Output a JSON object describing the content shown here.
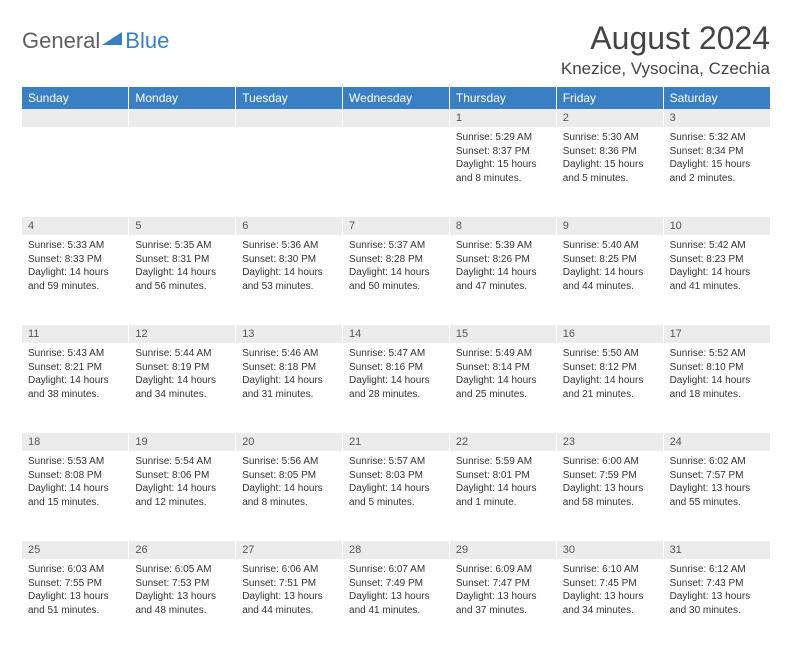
{
  "brand": {
    "part1": "General",
    "part2": "Blue"
  },
  "title": "August 2024",
  "location": "Knezice, Vysocina, Czechia",
  "colors": {
    "header_bg": "#3a7fc4",
    "header_text": "#ffffff",
    "daynum_bg": "#ececec",
    "body_text": "#333333",
    "page_bg": "#ffffff"
  },
  "weekdays": [
    "Sunday",
    "Monday",
    "Tuesday",
    "Wednesday",
    "Thursday",
    "Friday",
    "Saturday"
  ],
  "weeks": [
    [
      null,
      null,
      null,
      null,
      {
        "n": "1",
        "sr": "5:29 AM",
        "ss": "8:37 PM",
        "dl": "15 hours and 8 minutes."
      },
      {
        "n": "2",
        "sr": "5:30 AM",
        "ss": "8:36 PM",
        "dl": "15 hours and 5 minutes."
      },
      {
        "n": "3",
        "sr": "5:32 AM",
        "ss": "8:34 PM",
        "dl": "15 hours and 2 minutes."
      }
    ],
    [
      {
        "n": "4",
        "sr": "5:33 AM",
        "ss": "8:33 PM",
        "dl": "14 hours and 59 minutes."
      },
      {
        "n": "5",
        "sr": "5:35 AM",
        "ss": "8:31 PM",
        "dl": "14 hours and 56 minutes."
      },
      {
        "n": "6",
        "sr": "5:36 AM",
        "ss": "8:30 PM",
        "dl": "14 hours and 53 minutes."
      },
      {
        "n": "7",
        "sr": "5:37 AM",
        "ss": "8:28 PM",
        "dl": "14 hours and 50 minutes."
      },
      {
        "n": "8",
        "sr": "5:39 AM",
        "ss": "8:26 PM",
        "dl": "14 hours and 47 minutes."
      },
      {
        "n": "9",
        "sr": "5:40 AM",
        "ss": "8:25 PM",
        "dl": "14 hours and 44 minutes."
      },
      {
        "n": "10",
        "sr": "5:42 AM",
        "ss": "8:23 PM",
        "dl": "14 hours and 41 minutes."
      }
    ],
    [
      {
        "n": "11",
        "sr": "5:43 AM",
        "ss": "8:21 PM",
        "dl": "14 hours and 38 minutes."
      },
      {
        "n": "12",
        "sr": "5:44 AM",
        "ss": "8:19 PM",
        "dl": "14 hours and 34 minutes."
      },
      {
        "n": "13",
        "sr": "5:46 AM",
        "ss": "8:18 PM",
        "dl": "14 hours and 31 minutes."
      },
      {
        "n": "14",
        "sr": "5:47 AM",
        "ss": "8:16 PM",
        "dl": "14 hours and 28 minutes."
      },
      {
        "n": "15",
        "sr": "5:49 AM",
        "ss": "8:14 PM",
        "dl": "14 hours and 25 minutes."
      },
      {
        "n": "16",
        "sr": "5:50 AM",
        "ss": "8:12 PM",
        "dl": "14 hours and 21 minutes."
      },
      {
        "n": "17",
        "sr": "5:52 AM",
        "ss": "8:10 PM",
        "dl": "14 hours and 18 minutes."
      }
    ],
    [
      {
        "n": "18",
        "sr": "5:53 AM",
        "ss": "8:08 PM",
        "dl": "14 hours and 15 minutes."
      },
      {
        "n": "19",
        "sr": "5:54 AM",
        "ss": "8:06 PM",
        "dl": "14 hours and 12 minutes."
      },
      {
        "n": "20",
        "sr": "5:56 AM",
        "ss": "8:05 PM",
        "dl": "14 hours and 8 minutes."
      },
      {
        "n": "21",
        "sr": "5:57 AM",
        "ss": "8:03 PM",
        "dl": "14 hours and 5 minutes."
      },
      {
        "n": "22",
        "sr": "5:59 AM",
        "ss": "8:01 PM",
        "dl": "14 hours and 1 minute."
      },
      {
        "n": "23",
        "sr": "6:00 AM",
        "ss": "7:59 PM",
        "dl": "13 hours and 58 minutes."
      },
      {
        "n": "24",
        "sr": "6:02 AM",
        "ss": "7:57 PM",
        "dl": "13 hours and 55 minutes."
      }
    ],
    [
      {
        "n": "25",
        "sr": "6:03 AM",
        "ss": "7:55 PM",
        "dl": "13 hours and 51 minutes."
      },
      {
        "n": "26",
        "sr": "6:05 AM",
        "ss": "7:53 PM",
        "dl": "13 hours and 48 minutes."
      },
      {
        "n": "27",
        "sr": "6:06 AM",
        "ss": "7:51 PM",
        "dl": "13 hours and 44 minutes."
      },
      {
        "n": "28",
        "sr": "6:07 AM",
        "ss": "7:49 PM",
        "dl": "13 hours and 41 minutes."
      },
      {
        "n": "29",
        "sr": "6:09 AM",
        "ss": "7:47 PM",
        "dl": "13 hours and 37 minutes."
      },
      {
        "n": "30",
        "sr": "6:10 AM",
        "ss": "7:45 PM",
        "dl": "13 hours and 34 minutes."
      },
      {
        "n": "31",
        "sr": "6:12 AM",
        "ss": "7:43 PM",
        "dl": "13 hours and 30 minutes."
      }
    ]
  ],
  "labels": {
    "sunrise": "Sunrise:",
    "sunset": "Sunset:",
    "daylight": "Daylight:"
  }
}
